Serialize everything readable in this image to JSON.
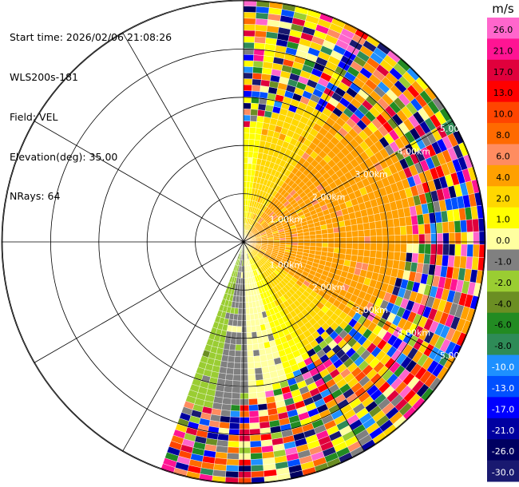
{
  "header": {
    "start_time": "Start time: 2026/02/06 21:08:26",
    "instrument": "WLS200s-181",
    "field": "Field: VEL",
    "elevation": "Elevation(deg): 35.00",
    "nrays": "NRays: 64"
  },
  "chart_data": {
    "type": "ppi",
    "field": "VEL",
    "elevation_deg": 35.0,
    "n_rays": 64,
    "azimuth_sector_deg": [
      0,
      200
    ],
    "range_ring_labels": [
      "1.00km",
      "2.00km",
      "3.00km",
      "4.00km",
      "5.00km"
    ],
    "range_rings_km": [
      1,
      2,
      3,
      4,
      5
    ],
    "azimuth_spokes_deg": [
      0,
      30,
      60,
      90,
      120,
      150,
      180,
      210,
      240,
      270,
      300,
      330
    ],
    "max_range_km": 5.0,
    "colorbar": {
      "unit": "m/s",
      "tick_labels": [
        "26.0",
        "21.0",
        "17.0",
        "13.0",
        "10.0",
        "8.0",
        "6.0",
        "4.0",
        "2.0",
        "1.0",
        "0.0",
        "-1.0",
        "-2.0",
        "-4.0",
        "-6.0",
        "-8.0",
        "-10.0",
        "-13.0",
        "-17.0",
        "-21.0",
        "-26.0",
        "-30.0"
      ],
      "colors": [
        "#ff66cc",
        "#ff1493",
        "#e0003c",
        "#ff0000",
        "#ff4500",
        "#ff6a00",
        "#ff8c60",
        "#ffa000",
        "#ffd700",
        "#ffff00",
        "#ffffa0",
        "#808080",
        "#9acd32",
        "#6b8e23",
        "#228b22",
        "#2e8b57",
        "#1e90ff",
        "#0050ff",
        "#0000ff",
        "#0000a0",
        "#000060",
        "#191970"
      ]
    }
  }
}
